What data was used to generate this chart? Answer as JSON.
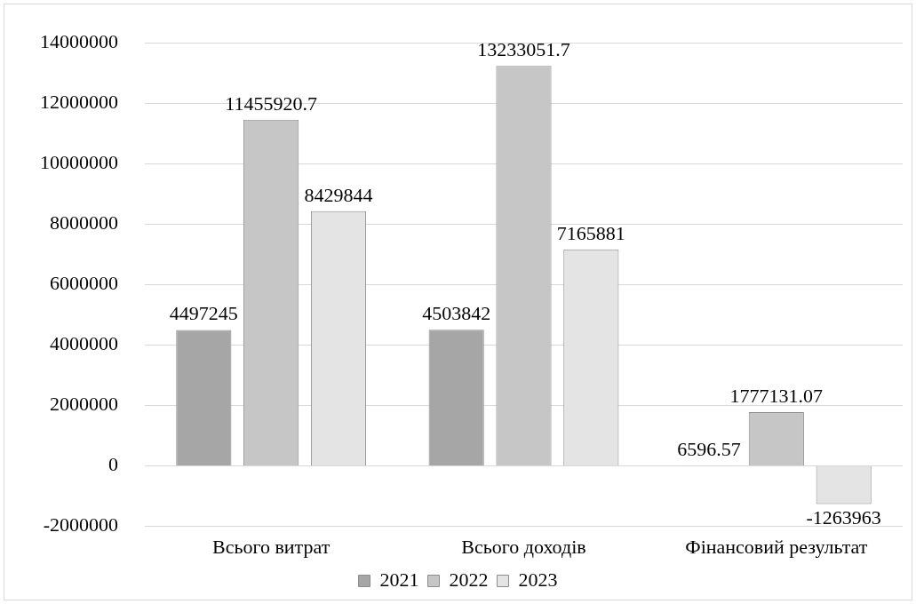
{
  "chart_data": {
    "type": "bar",
    "categories": [
      "Всього витрат",
      "Всього доходів",
      "Фінансовий результат"
    ],
    "series": [
      {
        "name": "2021",
        "color": "#a6a6a6",
        "values": [
          4497245,
          4503842,
          6596.57
        ]
      },
      {
        "name": "2022",
        "color": "#c6c6c6",
        "values": [
          11455920.7,
          13233051.7,
          1777131.07
        ]
      },
      {
        "name": "2023",
        "color": "#e4e4e4",
        "values": [
          8429844,
          7165881,
          -1263963
        ]
      }
    ],
    "ylim": [
      -2000000,
      14000000
    ],
    "yticks": [
      -2000000,
      0,
      2000000,
      4000000,
      6000000,
      8000000,
      10000000,
      12000000,
      14000000
    ],
    "grid": "y",
    "legend": "bottom",
    "data_labels": true
  }
}
